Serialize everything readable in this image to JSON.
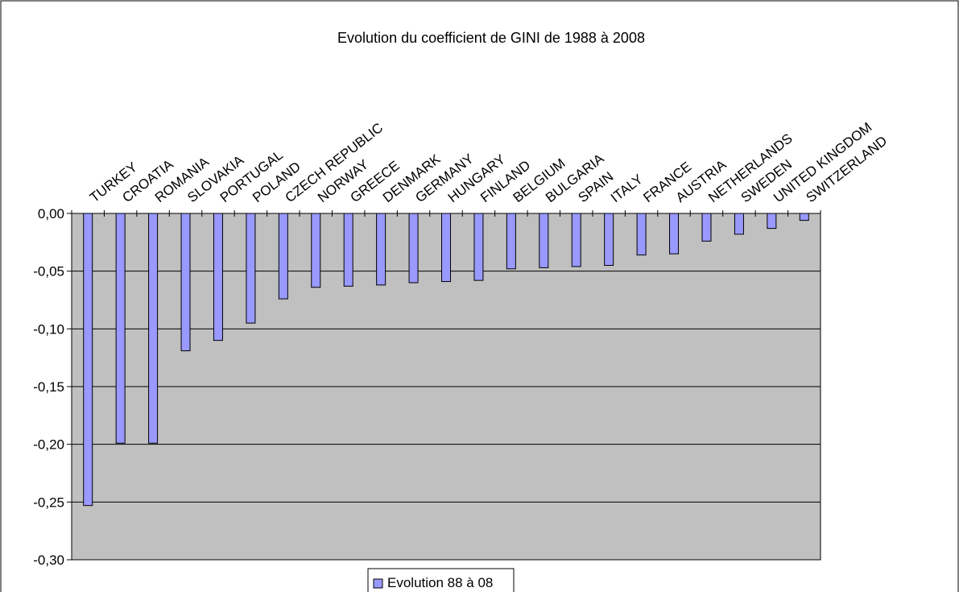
{
  "chart_data": {
    "type": "bar",
    "title": "Evolution du coefficient de GINI de 1988 à 2008",
    "xlabel": "",
    "ylabel": "",
    "categories": [
      "TURKEY",
      "CROATIA",
      "ROMANIA",
      "SLOVAKIA",
      "PORTUGAL",
      "POLAND",
      "CZECH REPUBLIC",
      "NORWAY",
      "GREECE",
      "DENMARK",
      "GERMANY",
      "HUNGARY",
      "FINLAND",
      "BELGIUM",
      "BULGARIA",
      "SPAIN",
      "ITALY",
      "FRANCE",
      "AUSTRIA",
      "NETHERLANDS",
      "SWEDEN",
      "UNITED KINGDOM",
      "SWITZERLAND"
    ],
    "series": [
      {
        "name": "Evolution 88 à 08",
        "values": [
          -0.253,
          -0.199,
          -0.199,
          -0.119,
          -0.11,
          -0.095,
          -0.074,
          -0.064,
          -0.063,
          -0.062,
          -0.06,
          -0.059,
          -0.058,
          -0.048,
          -0.047,
          -0.046,
          -0.045,
          -0.036,
          -0.035,
          -0.024,
          -0.018,
          -0.013,
          -0.006
        ]
      }
    ],
    "ylim": [
      -0.3,
      0.0
    ],
    "yticks": [
      0.0,
      -0.05,
      -0.1,
      -0.15,
      -0.2,
      -0.25,
      -0.3
    ],
    "ytick_labels": [
      "0,00",
      "-0,05",
      "-0,10",
      "-0,15",
      "-0,20",
      "-0,25",
      "-0,30"
    ],
    "grid": true,
    "legend_position": "bottom",
    "colors": {
      "bar": "#9999ff",
      "bar_outline": "#000000",
      "plot_background": "#c0c0c0",
      "page_background": "#ffffff"
    }
  }
}
